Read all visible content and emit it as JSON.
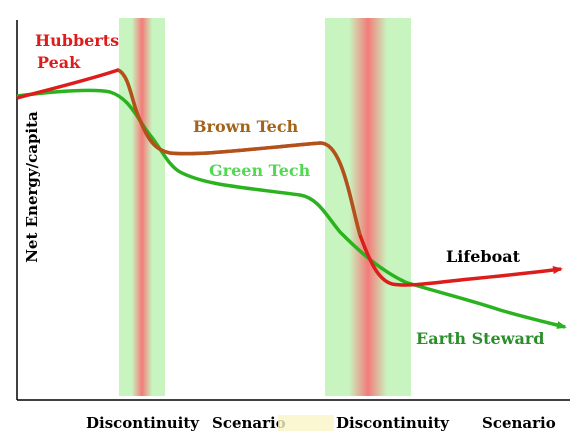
{
  "chart_data": {
    "type": "line",
    "ylabel": "Net Energy/capita",
    "labels": {
      "hubberts_peak_line1": "Hubberts",
      "hubberts_peak_line2": "Peak",
      "brown_tech": "Brown Tech",
      "green_tech": "Green Tech",
      "lifeboat": "Lifeboat",
      "earth_steward": "Earth Steward"
    },
    "x_axis_labels": [
      "Discontinuity",
      "Scenario",
      "Discontinuity",
      "Scenario"
    ],
    "colors": {
      "red": "#dd1c1c",
      "brown": "#a3641a",
      "green": "#2bb31f",
      "light_green_label": "#52d952",
      "band_green": "#c8f4bf",
      "band_red": "#f37b79",
      "axis": "#000000"
    }
  }
}
